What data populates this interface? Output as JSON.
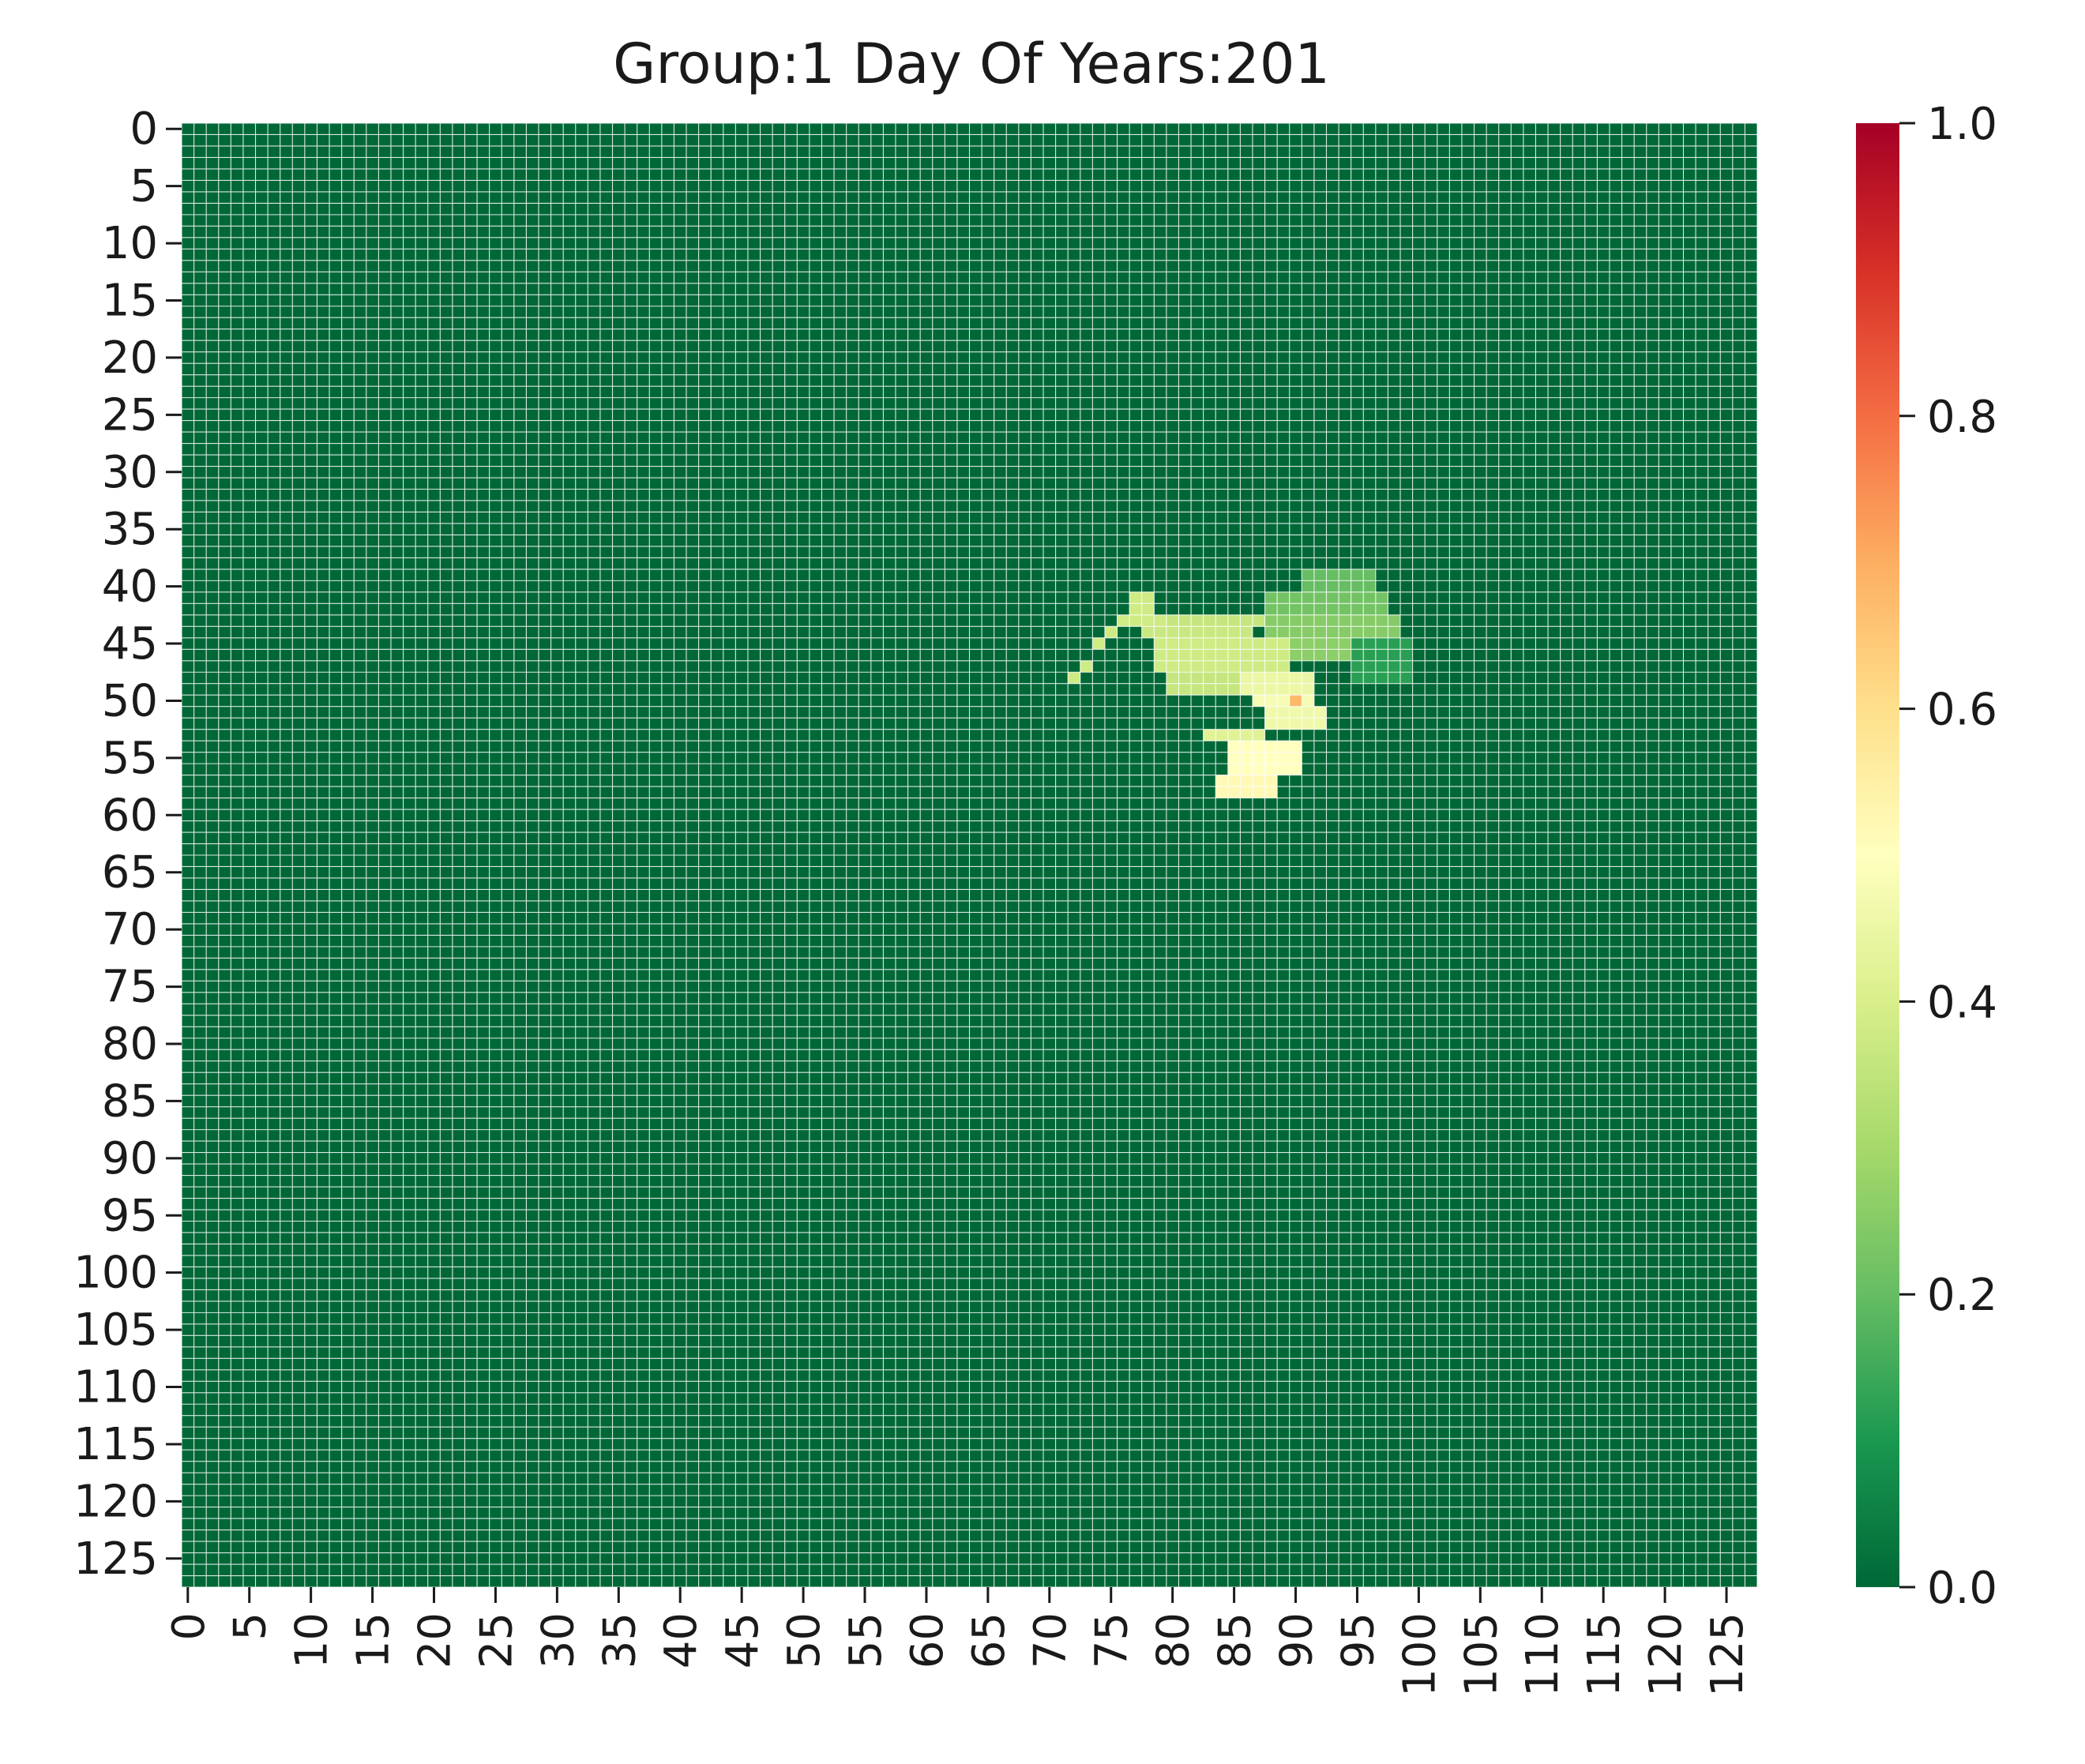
{
  "chart_data": {
    "type": "heatmap",
    "title": "Group:1 Day Of Years:201",
    "xlabel": "",
    "ylabel": "",
    "rows": 128,
    "cols": 128,
    "x_ticks": [
      0,
      5,
      10,
      15,
      20,
      25,
      30,
      35,
      40,
      45,
      50,
      55,
      60,
      65,
      70,
      75,
      80,
      85,
      90,
      95,
      100,
      105,
      110,
      115,
      120,
      125
    ],
    "y_ticks": [
      0,
      5,
      10,
      15,
      20,
      25,
      30,
      35,
      40,
      45,
      50,
      55,
      60,
      65,
      70,
      75,
      80,
      85,
      90,
      95,
      100,
      105,
      110,
      115,
      120,
      125
    ],
    "colorbar": {
      "min": 0.0,
      "max": 1.0,
      "ticks": [
        "0.0",
        "0.2",
        "0.4",
        "0.6",
        "0.8",
        "1.0"
      ],
      "colormap": "RdYlGn_r",
      "colors": [
        "#006837",
        "#1a9850",
        "#66bd63",
        "#a6d96a",
        "#d9ef8b",
        "#ffffbf",
        "#fee08b",
        "#fdae61",
        "#f46d43",
        "#d73027",
        "#a50026"
      ]
    },
    "cell_gridlines": true,
    "gridline_color": "#ffffff",
    "background_value": 0.0,
    "patches": [
      {
        "rows": [
          39,
          40
        ],
        "cols": [
          91,
          96
        ],
        "value": 0.2
      },
      {
        "rows": [
          41,
          42
        ],
        "cols": [
          88,
          97
        ],
        "value": 0.22
      },
      {
        "rows": [
          41,
          42
        ],
        "cols": [
          77,
          78
        ],
        "value": 0.38
      },
      {
        "rows": [
          43,
          43
        ],
        "cols": [
          76,
          79
        ],
        "value": 0.38
      },
      {
        "rows": [
          43,
          43
        ],
        "cols": [
          80,
          87
        ],
        "value": 0.36
      },
      {
        "rows": [
          43,
          44
        ],
        "cols": [
          88,
          98
        ],
        "value": 0.25
      },
      {
        "rows": [
          44,
          44
        ],
        "cols": [
          75,
          75
        ],
        "value": 0.38
      },
      {
        "rows": [
          44,
          44
        ],
        "cols": [
          78,
          86
        ],
        "value": 0.37
      },
      {
        "rows": [
          45,
          47
        ],
        "cols": [
          79,
          89
        ],
        "value": 0.38
      },
      {
        "rows": [
          45,
          45
        ],
        "cols": [
          74,
          74
        ],
        "value": 0.38
      },
      {
        "rows": [
          45,
          48
        ],
        "cols": [
          95,
          99
        ],
        "value": 0.12
      },
      {
        "rows": [
          45,
          46
        ],
        "cols": [
          90,
          94
        ],
        "value": 0.26
      },
      {
        "rows": [
          47,
          47
        ],
        "cols": [
          73,
          73
        ],
        "value": 0.38
      },
      {
        "rows": [
          48,
          48
        ],
        "cols": [
          72,
          72
        ],
        "value": 0.38
      },
      {
        "rows": [
          48,
          49
        ],
        "cols": [
          80,
          85
        ],
        "value": 0.36
      },
      {
        "rows": [
          48,
          49
        ],
        "cols": [
          86,
          91
        ],
        "value": 0.45
      },
      {
        "rows": [
          50,
          50
        ],
        "cols": [
          87,
          91
        ],
        "value": 0.48
      },
      {
        "rows": [
          50,
          50
        ],
        "cols": [
          90,
          90
        ],
        "value": 0.68
      },
      {
        "rows": [
          51,
          52
        ],
        "cols": [
          88,
          92
        ],
        "value": 0.46
      },
      {
        "rows": [
          53,
          53
        ],
        "cols": [
          83,
          87
        ],
        "value": 0.42
      },
      {
        "rows": [
          54,
          56
        ],
        "cols": [
          85,
          90
        ],
        "value": 0.5
      },
      {
        "rows": [
          57,
          58
        ],
        "cols": [
          84,
          88
        ],
        "value": 0.52
      }
    ]
  }
}
